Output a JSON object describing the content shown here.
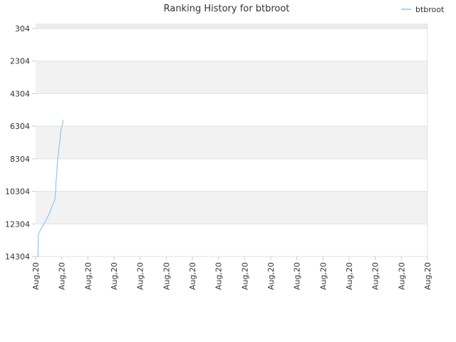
{
  "chart_data": {
    "type": "line",
    "title": "Ranking History for btbroot",
    "xlabel": "",
    "ylabel": "",
    "y_inverted": true,
    "ylim": [
      14304,
      304
    ],
    "yticks": [
      304,
      2304,
      4304,
      6304,
      8304,
      10304,
      12304,
      14304
    ],
    "ytick_labels": [
      "304",
      "2304",
      "4304",
      "6304",
      "8304",
      "10304",
      "12304",
      "14304"
    ],
    "xtick_labels": [
      "Aug,20",
      "Aug,20",
      "Aug,20",
      "Aug,20",
      "Aug,20",
      "Aug,20",
      "Aug,20",
      "Aug,20",
      "Aug,20",
      "Aug,20",
      "Aug,20",
      "Aug,20",
      "Aug,20",
      "Aug,20",
      "Aug,20",
      "Aug,20"
    ],
    "grid": true,
    "legend_position": "top-right",
    "series": [
      {
        "name": "btbroot",
        "color": "#90c6ee",
        "x": [
          0.04,
          0.09,
          0.105,
          0.2,
          0.3,
          0.4,
          0.5,
          0.6,
          0.7,
          0.72,
          0.73,
          0.75,
          0.76,
          0.77,
          0.78,
          0.8,
          0.81,
          0.82,
          0.83,
          0.85,
          0.87,
          0.88,
          0.9,
          0.92,
          0.94,
          0.95,
          0.96,
          0.97,
          0.98,
          1.0,
          1.02,
          1.04,
          1.05
        ],
        "y": [
          14304,
          14304,
          12904,
          12650,
          12350,
          12050,
          11750,
          11350,
          10950,
          10900,
          10850,
          10650,
          10400,
          10200,
          9700,
          9450,
          9200,
          8850,
          8650,
          8250,
          8150,
          7750,
          7550,
          7350,
          7100,
          6750,
          6650,
          6550,
          6450,
          6350,
          6250,
          6100,
          5900
        ]
      }
    ]
  }
}
